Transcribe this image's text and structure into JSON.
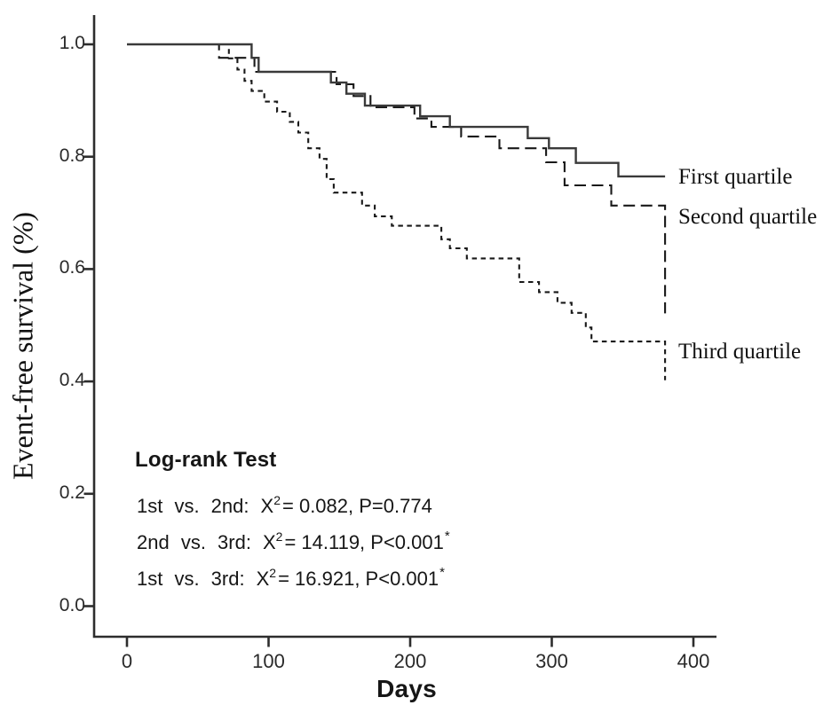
{
  "colors": {
    "background": "#ffffff",
    "axis": "#2d2d2d",
    "solid_line": "#3a3a3a",
    "dashed_line": "#191919",
    "text": "#161616"
  },
  "chart_data": {
    "type": "line",
    "subtype": "kaplan_meier_step",
    "xlabel": "Days",
    "ylabel": "Event-free survival (%)",
    "xlim": [
      -23,
      416
    ],
    "ylim": [
      0.0,
      1.05
    ],
    "grid": false,
    "legend_position": "right-of-curves",
    "x_ticks": [
      {
        "label": "0",
        "value": 0
      },
      {
        "label": "100",
        "value": 100
      },
      {
        "label": "200",
        "value": 200
      },
      {
        "label": "300",
        "value": 300
      },
      {
        "label": "400",
        "value": 400
      }
    ],
    "y_ticks": [
      {
        "label": "0.0",
        "value": 0.0
      },
      {
        "label": "0.2",
        "value": 0.2
      },
      {
        "label": "0.4",
        "value": 0.4
      },
      {
        "label": "0.6",
        "value": 0.6
      },
      {
        "label": "0.8",
        "value": 0.8
      },
      {
        "label": "1.0",
        "value": 1.0
      }
    ],
    "series": [
      {
        "id": "first-quartile",
        "name": "First quartile",
        "dash": "solid",
        "points": [
          [
            0,
            1.0
          ],
          [
            88,
            0.976
          ],
          [
            93,
            0.951
          ],
          [
            144,
            0.932
          ],
          [
            155,
            0.912
          ],
          [
            168,
            0.891
          ],
          [
            207,
            0.872
          ],
          [
            228,
            0.853
          ],
          [
            283,
            0.833
          ],
          [
            298,
            0.815
          ],
          [
            317,
            0.789
          ],
          [
            347,
            0.765
          ],
          [
            380,
            0.765
          ]
        ]
      },
      {
        "id": "second-quartile",
        "name": "Second quartile",
        "dash": "long",
        "points": [
          [
            0,
            1.0
          ],
          [
            65,
            0.976
          ],
          [
            90,
            0.951
          ],
          [
            148,
            0.929
          ],
          [
            160,
            0.908
          ],
          [
            172,
            0.888
          ],
          [
            203,
            0.868
          ],
          [
            215,
            0.853
          ],
          [
            236,
            0.836
          ],
          [
            263,
            0.815
          ],
          [
            296,
            0.79
          ],
          [
            309,
            0.749
          ],
          [
            342,
            0.713
          ],
          [
            380,
            0.521
          ]
        ]
      },
      {
        "id": "third-quartile",
        "name": "Third quartile",
        "dash": "short",
        "points": [
          [
            0,
            1.0
          ],
          [
            72,
            0.975
          ],
          [
            78,
            0.955
          ],
          [
            83,
            0.935
          ],
          [
            88,
            0.917
          ],
          [
            97,
            0.898
          ],
          [
            106,
            0.88
          ],
          [
            115,
            0.862
          ],
          [
            121,
            0.843
          ],
          [
            128,
            0.815
          ],
          [
            136,
            0.796
          ],
          [
            141,
            0.76
          ],
          [
            146,
            0.736
          ],
          [
            166,
            0.713
          ],
          [
            175,
            0.694
          ],
          [
            187,
            0.677
          ],
          [
            222,
            0.653
          ],
          [
            228,
            0.637
          ],
          [
            240,
            0.619
          ],
          [
            277,
            0.577
          ],
          [
            291,
            0.559
          ],
          [
            304,
            0.54
          ],
          [
            314,
            0.522
          ],
          [
            324,
            0.496
          ],
          [
            328,
            0.471
          ],
          [
            380,
            0.402
          ]
        ]
      }
    ]
  },
  "logrank": {
    "title": "Log-rank Test",
    "lines": [
      {
        "pair": "1st vs. 2nd:",
        "chi": "X",
        "sup": "2",
        "value": "= 0.082, P=0.774",
        "star": ""
      },
      {
        "pair": "2nd vs. 3rd:",
        "chi": "X",
        "sup": "2",
        "value": "= 14.119, P<0.001",
        "star": "*"
      },
      {
        "pair": "1st vs. 3rd:",
        "chi": "X",
        "sup": "2",
        "value": "= 16.921, P<0.001",
        "star": "*"
      }
    ]
  }
}
